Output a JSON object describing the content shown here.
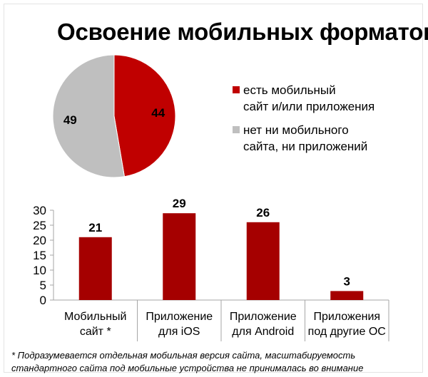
{
  "title": "Освоение мобильных форматов",
  "colors": {
    "primary": "#c00000",
    "secondary": "#bfbfbf",
    "bar": "#a50000",
    "axis": "#a6a6a6"
  },
  "footnote": {
    "line1": "* Подразумевается отдельная мобильная версия сайта, масштабируемость",
    "line2": "стандартного сайта под мобильные устройства не принималась во внимание"
  },
  "chart_data": [
    {
      "type": "pie",
      "categories": [
        "есть мобильный сайт и/или приложения",
        "нет ни мобильного сайта, ни приложений"
      ],
      "legend_lines": [
        [
          "есть мобильный",
          "сайт и/или приложения"
        ],
        [
          "нет ни мобильного",
          "сайта, ни приложений"
        ]
      ],
      "values": [
        44,
        49
      ],
      "legend_position": "right"
    },
    {
      "type": "bar",
      "categories": [
        "Мобильный сайт *",
        "Приложение для iOS",
        "Приложение для Android",
        "Приложения под другие ОС"
      ],
      "category_lines": [
        [
          "Мобильный",
          "сайт *"
        ],
        [
          "Приложение",
          "для iOS"
        ],
        [
          "Приложение",
          "для Android"
        ],
        [
          "Приложения",
          "под другие ОС"
        ]
      ],
      "values": [
        21,
        29,
        26,
        3
      ],
      "ylim": [
        0,
        30
      ],
      "yticks": [
        0,
        5,
        10,
        15,
        20,
        25,
        30
      ],
      "data_labels": true,
      "grid": false
    }
  ]
}
